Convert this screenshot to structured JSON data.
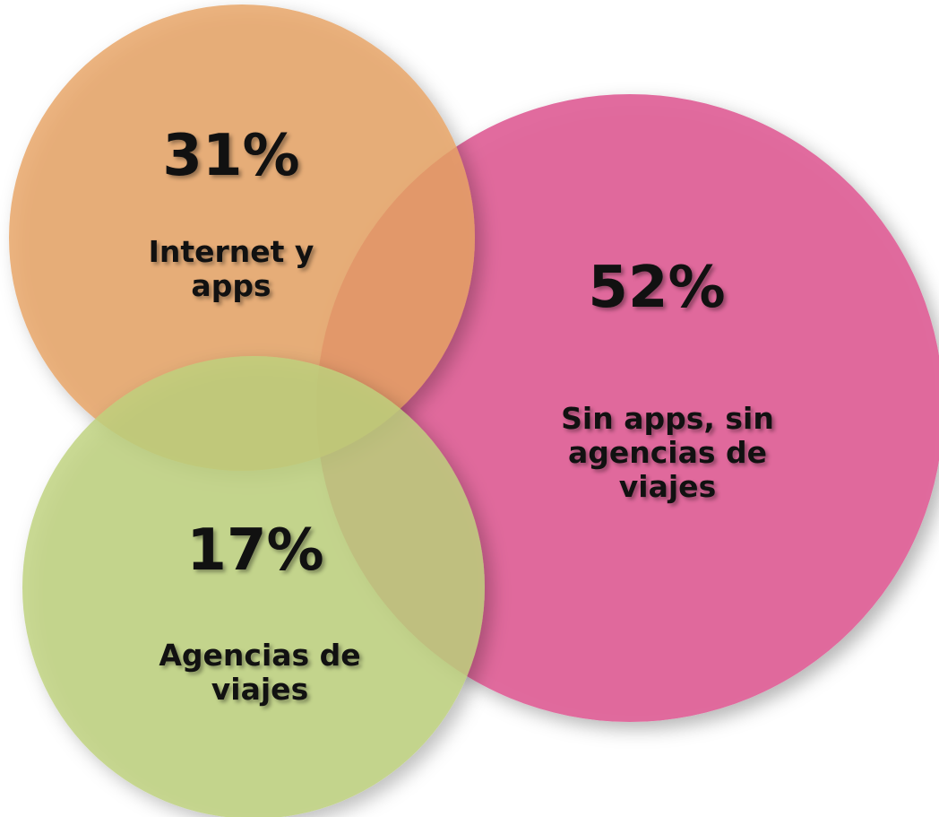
{
  "chart_data": {
    "type": "bubble",
    "categories": [
      "Internet y apps",
      "Sin apps, sin agencias de viajes",
      "Agencias de viajes"
    ],
    "values": [
      31,
      52,
      17
    ],
    "value_labels": [
      "31%",
      "52%",
      "17%"
    ],
    "colors": [
      "#e8a464",
      "#e0649a",
      "#bed27e"
    ]
  }
}
